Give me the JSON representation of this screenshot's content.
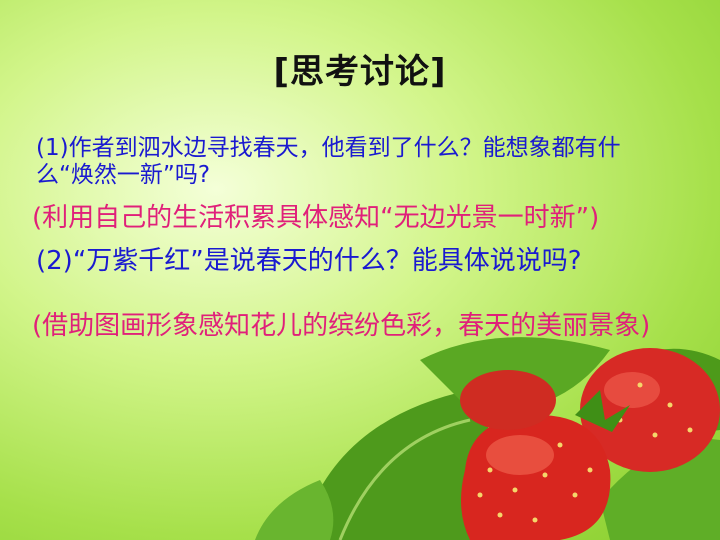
{
  "title": "[思考讨论]",
  "question1": "(1)作者到泗水边寻找春天，他看到了什么？能想象都有什么“焕然一新”吗?",
  "answer1": "(利用自己的生活积累具体感知“无边光景一时新”)",
  "question2": "(2)“万紫千红”是说春天的什么？能具体说说吗?",
  "answer2": "(借助图画形象感知花儿的缤纷色彩，春天的美丽景象)",
  "colors": {
    "question_text": "#1a1ad0",
    "answer_text": "#e0207a",
    "title_text": "#111111",
    "background": "#a6e04a"
  },
  "decoration": {
    "image_subject": "strawberries-icon"
  }
}
